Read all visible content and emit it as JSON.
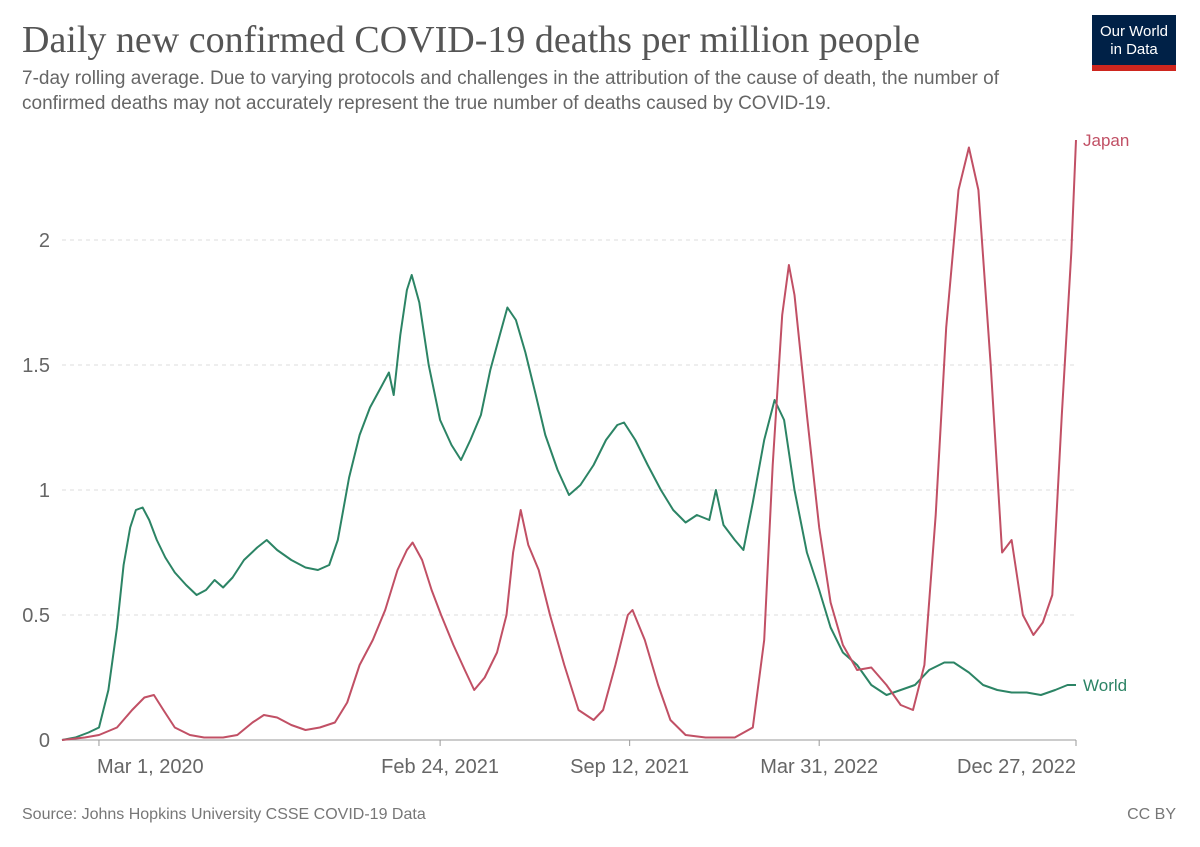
{
  "header": {
    "title": "Daily new confirmed COVID-19 deaths per million people",
    "subtitle": "7-day rolling average. Due to varying protocols and challenges in the attribution of the cause of death, the number of confirmed deaths may not accurately represent the true number of deaths caused by COVID-19.",
    "logo_line1": "Our World",
    "logo_line2": "in Data"
  },
  "footer": {
    "source": "Source: Johns Hopkins University CSSE COVID-19 Data",
    "license": "CC BY"
  },
  "colors": {
    "japan": "#c15065",
    "world": "#2c8465",
    "logo_bg": "#002147",
    "logo_accent": "#ce261e"
  },
  "chart_data": {
    "type": "line",
    "title": "Daily new confirmed COVID-19 deaths per million people",
    "xlabel": "",
    "ylabel": "",
    "xlim": [
      "2020-01-22",
      "2022-12-27"
    ],
    "ylim": [
      0,
      2.4
    ],
    "grid": "horizontal dashed",
    "y_ticks": [
      0,
      0.5,
      1,
      1.5,
      2
    ],
    "y_tick_labels": [
      "0",
      "0.5",
      "1",
      "1.5",
      "2"
    ],
    "x_ticks": [
      "2020-03-01",
      "2021-02-24",
      "2021-09-12",
      "2022-03-31",
      "2022-12-27"
    ],
    "x_tick_labels": [
      "Mar 1, 2020",
      "Feb 24, 2021",
      "Sep 12, 2021",
      "Mar 31, 2022",
      "Dec 27, 2022"
    ],
    "series": [
      {
        "name": "World",
        "color": "#2c8465",
        "points": [
          [
            "2020-01-22",
            0
          ],
          [
            "2020-02-05",
            0.01
          ],
          [
            "2020-02-19",
            0.03
          ],
          [
            "2020-03-01",
            0.05
          ],
          [
            "2020-03-11",
            0.2
          ],
          [
            "2020-03-20",
            0.45
          ],
          [
            "2020-03-27",
            0.7
          ],
          [
            "2020-04-03",
            0.85
          ],
          [
            "2020-04-09",
            0.92
          ],
          [
            "2020-04-16",
            0.93
          ],
          [
            "2020-04-23",
            0.88
          ],
          [
            "2020-05-01",
            0.8
          ],
          [
            "2020-05-10",
            0.73
          ],
          [
            "2020-05-20",
            0.67
          ],
          [
            "2020-06-01",
            0.62
          ],
          [
            "2020-06-12",
            0.58
          ],
          [
            "2020-06-22",
            0.6
          ],
          [
            "2020-07-01",
            0.64
          ],
          [
            "2020-07-10",
            0.61
          ],
          [
            "2020-07-20",
            0.65
          ],
          [
            "2020-08-01",
            0.72
          ],
          [
            "2020-08-15",
            0.77
          ],
          [
            "2020-08-25",
            0.8
          ],
          [
            "2020-09-05",
            0.76
          ],
          [
            "2020-09-20",
            0.72
          ],
          [
            "2020-10-05",
            0.69
          ],
          [
            "2020-10-18",
            0.68
          ],
          [
            "2020-10-30",
            0.7
          ],
          [
            "2020-11-08",
            0.8
          ],
          [
            "2020-11-20",
            1.05
          ],
          [
            "2020-12-01",
            1.22
          ],
          [
            "2020-12-12",
            1.33
          ],
          [
            "2020-12-22",
            1.4
          ],
          [
            "2021-01-01",
            1.47
          ],
          [
            "2021-01-06",
            1.38
          ],
          [
            "2021-01-13",
            1.62
          ],
          [
            "2021-01-20",
            1.8
          ],
          [
            "2021-01-25",
            1.86
          ],
          [
            "2021-02-02",
            1.75
          ],
          [
            "2021-02-12",
            1.5
          ],
          [
            "2021-02-24",
            1.28
          ],
          [
            "2021-03-08",
            1.18
          ],
          [
            "2021-03-18",
            1.12
          ],
          [
            "2021-03-28",
            1.2
          ],
          [
            "2021-04-08",
            1.3
          ],
          [
            "2021-04-18",
            1.48
          ],
          [
            "2021-04-28",
            1.62
          ],
          [
            "2021-05-06",
            1.73
          ],
          [
            "2021-05-15",
            1.68
          ],
          [
            "2021-05-25",
            1.55
          ],
          [
            "2021-06-05",
            1.38
          ],
          [
            "2021-06-15",
            1.22
          ],
          [
            "2021-06-28",
            1.08
          ],
          [
            "2021-07-10",
            0.98
          ],
          [
            "2021-07-22",
            1.02
          ],
          [
            "2021-08-05",
            1.1
          ],
          [
            "2021-08-18",
            1.2
          ],
          [
            "2021-08-30",
            1.26
          ],
          [
            "2021-09-06",
            1.27
          ],
          [
            "2021-09-18",
            1.2
          ],
          [
            "2021-10-01",
            1.1
          ],
          [
            "2021-10-15",
            1.0
          ],
          [
            "2021-10-28",
            0.92
          ],
          [
            "2021-11-10",
            0.87
          ],
          [
            "2021-11-22",
            0.9
          ],
          [
            "2021-12-05",
            0.88
          ],
          [
            "2021-12-12",
            1.0
          ],
          [
            "2021-12-20",
            0.86
          ],
          [
            "2022-01-01",
            0.8
          ],
          [
            "2022-01-10",
            0.76
          ],
          [
            "2022-01-20",
            0.95
          ],
          [
            "2022-02-01",
            1.2
          ],
          [
            "2022-02-12",
            1.36
          ],
          [
            "2022-02-22",
            1.28
          ],
          [
            "2022-03-05",
            1.0
          ],
          [
            "2022-03-18",
            0.75
          ],
          [
            "2022-03-31",
            0.6
          ],
          [
            "2022-04-12",
            0.45
          ],
          [
            "2022-04-25",
            0.35
          ],
          [
            "2022-05-10",
            0.3
          ],
          [
            "2022-05-25",
            0.22
          ],
          [
            "2022-06-10",
            0.18
          ],
          [
            "2022-06-25",
            0.2
          ],
          [
            "2022-07-10",
            0.22
          ],
          [
            "2022-07-25",
            0.28
          ],
          [
            "2022-08-10",
            0.31
          ],
          [
            "2022-08-20",
            0.31
          ],
          [
            "2022-09-05",
            0.27
          ],
          [
            "2022-09-20",
            0.22
          ],
          [
            "2022-10-05",
            0.2
          ],
          [
            "2022-10-20",
            0.19
          ],
          [
            "2022-11-05",
            0.19
          ],
          [
            "2022-11-20",
            0.18
          ],
          [
            "2022-12-05",
            0.2
          ],
          [
            "2022-12-18",
            0.22
          ],
          [
            "2022-12-27",
            0.22
          ]
        ]
      },
      {
        "name": "Japan",
        "color": "#c15065",
        "points": [
          [
            "2020-01-22",
            0
          ],
          [
            "2020-02-15",
            0.01
          ],
          [
            "2020-03-01",
            0.02
          ],
          [
            "2020-03-20",
            0.05
          ],
          [
            "2020-04-05",
            0.12
          ],
          [
            "2020-04-18",
            0.17
          ],
          [
            "2020-04-28",
            0.18
          ],
          [
            "2020-05-08",
            0.12
          ],
          [
            "2020-05-20",
            0.05
          ],
          [
            "2020-06-05",
            0.02
          ],
          [
            "2020-06-20",
            0.01
          ],
          [
            "2020-07-10",
            0.01
          ],
          [
            "2020-07-25",
            0.02
          ],
          [
            "2020-08-10",
            0.07
          ],
          [
            "2020-08-22",
            0.1
          ],
          [
            "2020-09-05",
            0.09
          ],
          [
            "2020-09-20",
            0.06
          ],
          [
            "2020-10-05",
            0.04
          ],
          [
            "2020-10-20",
            0.05
          ],
          [
            "2020-11-05",
            0.07
          ],
          [
            "2020-11-18",
            0.15
          ],
          [
            "2020-12-01",
            0.3
          ],
          [
            "2020-12-15",
            0.4
          ],
          [
            "2020-12-28",
            0.52
          ],
          [
            "2021-01-10",
            0.68
          ],
          [
            "2021-01-20",
            0.76
          ],
          [
            "2021-01-26",
            0.79
          ],
          [
            "2021-02-05",
            0.72
          ],
          [
            "2021-02-15",
            0.6
          ],
          [
            "2021-02-25",
            0.5
          ],
          [
            "2021-03-10",
            0.38
          ],
          [
            "2021-03-22",
            0.28
          ],
          [
            "2021-04-01",
            0.2
          ],
          [
            "2021-04-12",
            0.25
          ],
          [
            "2021-04-25",
            0.35
          ],
          [
            "2021-05-05",
            0.5
          ],
          [
            "2021-05-12",
            0.75
          ],
          [
            "2021-05-20",
            0.92
          ],
          [
            "2021-05-28",
            0.78
          ],
          [
            "2021-06-08",
            0.68
          ],
          [
            "2021-06-20",
            0.5
          ],
          [
            "2021-07-05",
            0.3
          ],
          [
            "2021-07-20",
            0.12
          ],
          [
            "2021-08-05",
            0.08
          ],
          [
            "2021-08-15",
            0.12
          ],
          [
            "2021-08-28",
            0.3
          ],
          [
            "2021-09-10",
            0.5
          ],
          [
            "2021-09-15",
            0.52
          ],
          [
            "2021-09-28",
            0.4
          ],
          [
            "2021-10-12",
            0.22
          ],
          [
            "2021-10-25",
            0.08
          ],
          [
            "2021-11-10",
            0.02
          ],
          [
            "2021-12-01",
            0.01
          ],
          [
            "2022-01-01",
            0.01
          ],
          [
            "2022-01-20",
            0.05
          ],
          [
            "2022-02-01",
            0.4
          ],
          [
            "2022-02-10",
            1.1
          ],
          [
            "2022-02-20",
            1.7
          ],
          [
            "2022-02-27",
            1.9
          ],
          [
            "2022-03-05",
            1.78
          ],
          [
            "2022-03-18",
            1.3
          ],
          [
            "2022-03-31",
            0.85
          ],
          [
            "2022-04-12",
            0.55
          ],
          [
            "2022-04-25",
            0.38
          ],
          [
            "2022-05-10",
            0.28
          ],
          [
            "2022-05-25",
            0.29
          ],
          [
            "2022-06-10",
            0.22
          ],
          [
            "2022-06-25",
            0.14
          ],
          [
            "2022-07-08",
            0.12
          ],
          [
            "2022-07-20",
            0.3
          ],
          [
            "2022-08-01",
            0.9
          ],
          [
            "2022-08-12",
            1.65
          ],
          [
            "2022-08-25",
            2.2
          ],
          [
            "2022-09-05",
            2.37
          ],
          [
            "2022-09-15",
            2.2
          ],
          [
            "2022-09-28",
            1.5
          ],
          [
            "2022-10-10",
            0.75
          ],
          [
            "2022-10-20",
            0.8
          ],
          [
            "2022-11-01",
            0.5
          ],
          [
            "2022-11-12",
            0.42
          ],
          [
            "2022-11-22",
            0.47
          ],
          [
            "2022-12-02",
            0.58
          ],
          [
            "2022-12-12",
            1.3
          ],
          [
            "2022-12-22",
            1.95
          ],
          [
            "2022-12-27",
            2.4
          ]
        ]
      }
    ]
  }
}
